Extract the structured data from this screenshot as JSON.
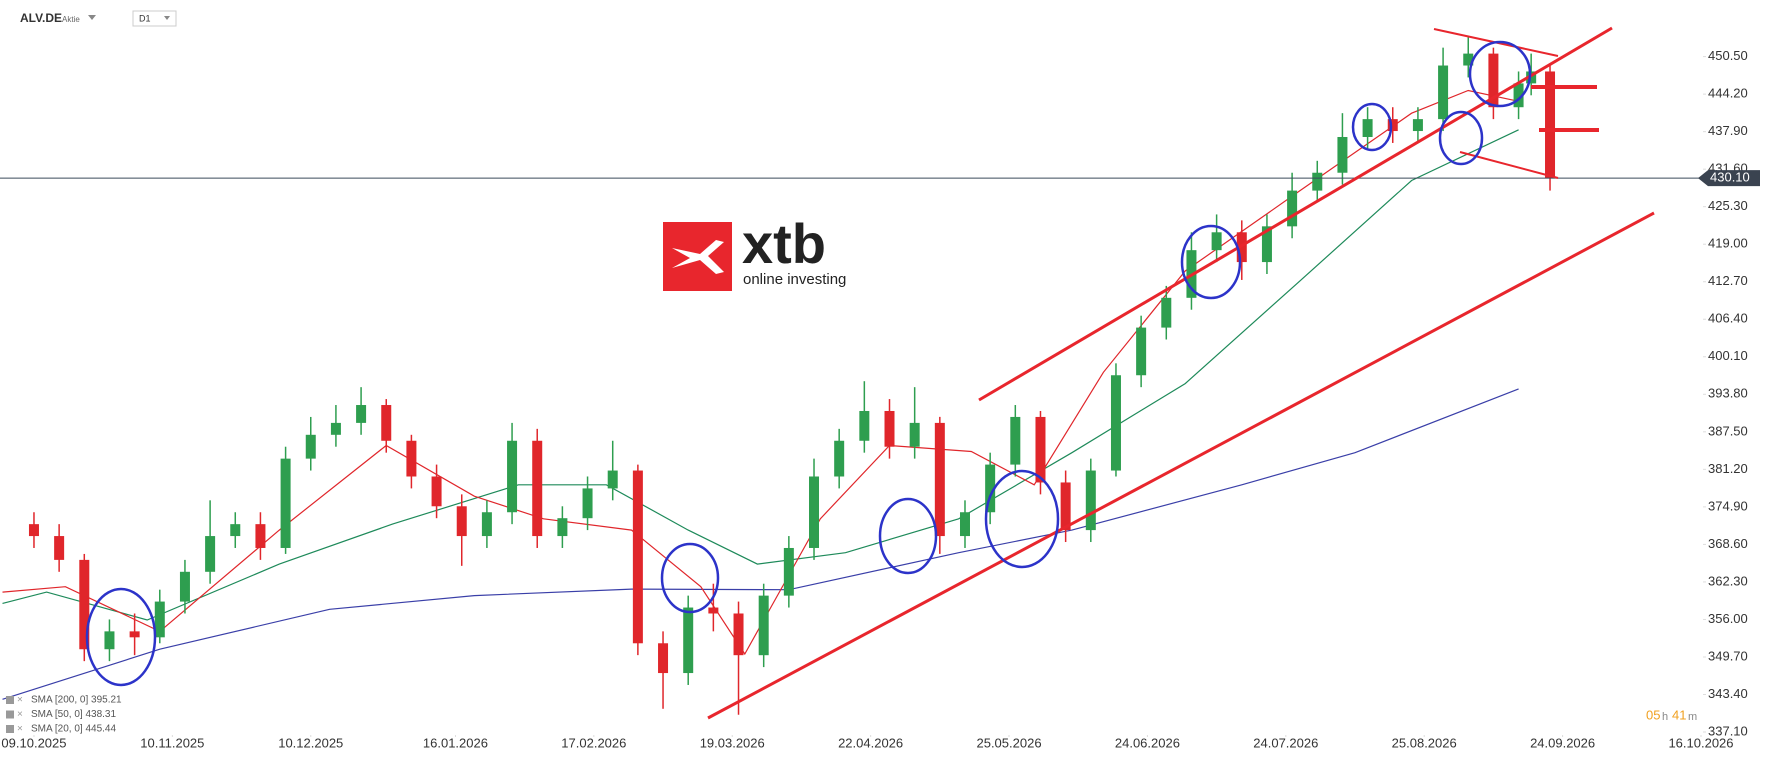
{
  "header": {
    "symbol": "ALV.DE",
    "instrument_type": "Aktie",
    "interval": "D1"
  },
  "logo": {
    "brand": "xtb",
    "tagline": "online investing"
  },
  "timer": {
    "hours": "05",
    "hours_unit": "h",
    "minutes": "41",
    "minutes_unit": "m"
  },
  "chart_data": {
    "type": "candlestick",
    "x": [
      0,
      4,
      8,
      12,
      16,
      20,
      24,
      28,
      32,
      36,
      40,
      44,
      48,
      52,
      56,
      60,
      64,
      68,
      72,
      76,
      80,
      84,
      88,
      92,
      96,
      100,
      104,
      108,
      112,
      116,
      120,
      124,
      128,
      132,
      136,
      140,
      144,
      148,
      152,
      156,
      160,
      164,
      168,
      172,
      176,
      180,
      184,
      188,
      192,
      196,
      200,
      204,
      208,
      212,
      216,
      220,
      224,
      228,
      232,
      236,
      238,
      241
    ],
    "open": [
      372,
      370,
      366,
      351,
      354,
      353,
      359,
      364,
      370,
      372,
      368,
      383,
      387,
      389,
      392,
      386,
      380,
      375,
      370,
      374,
      386,
      370,
      373,
      378,
      381,
      352,
      347,
      358,
      357,
      350,
      360,
      368,
      380,
      386,
      391,
      385,
      389,
      370,
      374,
      382,
      390,
      379,
      371,
      381,
      397,
      405,
      410,
      418,
      421,
      416,
      422,
      428,
      431,
      437,
      440,
      438,
      440,
      449,
      451,
      442,
      446,
      448
    ],
    "high": [
      374,
      372,
      367,
      356,
      357,
      361,
      366,
      376,
      374,
      374,
      385,
      390,
      392,
      395,
      393,
      387,
      382,
      377,
      376,
      389,
      388,
      375,
      380,
      386,
      382,
      354,
      360,
      362,
      359,
      362,
      370,
      383,
      388,
      396,
      393,
      395,
      390,
      376,
      384,
      392,
      391,
      381,
      383,
      399,
      407,
      412,
      421,
      424,
      423,
      424,
      431,
      433,
      441,
      442,
      442,
      442,
      452,
      454,
      452,
      448,
      451,
      449
    ],
    "low": [
      368,
      364,
      349,
      349,
      350,
      352,
      357,
      362,
      368,
      366,
      367,
      381,
      385,
      387,
      384,
      378,
      373,
      365,
      368,
      372,
      368,
      368,
      371,
      376,
      350,
      341,
      345,
      354,
      340,
      348,
      358,
      366,
      378,
      384,
      383,
      383,
      367,
      368,
      372,
      380,
      377,
      369,
      369,
      380,
      395,
      403,
      408,
      416,
      413,
      414,
      420,
      426,
      429,
      435,
      436,
      436,
      438,
      447,
      440,
      440,
      444,
      428
    ],
    "close": [
      370,
      366,
      351,
      354,
      353,
      359,
      364,
      370,
      372,
      368,
      383,
      387,
      389,
      392,
      386,
      380,
      375,
      370,
      374,
      386,
      370,
      373,
      378,
      381,
      352,
      347,
      358,
      357,
      350,
      360,
      368,
      380,
      386,
      391,
      385,
      389,
      370,
      374,
      382,
      390,
      379,
      371,
      381,
      397,
      405,
      410,
      418,
      421,
      416,
      422,
      428,
      431,
      437,
      440,
      438,
      440,
      449,
      451,
      442,
      446,
      448,
      430.1
    ],
    "up_color": "#2e9e4f",
    "down_color": "#e0262b",
    "xlim": [
      -5.4,
      265
    ],
    "xticks": [
      {
        "value": 0,
        "label": "09.10.2025"
      },
      {
        "value": 22,
        "label": "10.11.2025"
      },
      {
        "value": 44,
        "label": "10.12.2025"
      },
      {
        "value": 67,
        "label": "16.01.2026"
      },
      {
        "value": 89,
        "label": "17.02.2026"
      },
      {
        "value": 111,
        "label": "19.03.2026"
      },
      {
        "value": 133,
        "label": "22.04.2026"
      },
      {
        "value": 155,
        "label": "25.05.2026"
      },
      {
        "value": 177,
        "label": "24.06.2026"
      },
      {
        "value": 199,
        "label": "24.07.2026"
      },
      {
        "value": 221,
        "label": "25.08.2026"
      },
      {
        "value": 243,
        "label": "24.09.2026"
      },
      {
        "value": 265,
        "label": "16.10.2026"
      }
    ],
    "ylim": [
      336.6,
      460
    ],
    "yticks": [
      {
        "value": 450.5,
        "label": "450.50"
      },
      {
        "value": 444.2,
        "label": "444.20"
      },
      {
        "value": 437.9,
        "label": "437.90"
      },
      {
        "value": 431.6,
        "label": "431.60"
      },
      {
        "value": 425.3,
        "label": "425.30"
      },
      {
        "value": 419,
        "label": "419.00"
      },
      {
        "value": 412.7,
        "label": "412.70"
      },
      {
        "value": 406.4,
        "label": "406.40"
      },
      {
        "value": 400.1,
        "label": "400.10"
      },
      {
        "value": 393.8,
        "label": "393.80"
      },
      {
        "value": 387.5,
        "label": "387.50"
      },
      {
        "value": 381.2,
        "label": "381.20"
      },
      {
        "value": 374.9,
        "label": "374.90"
      },
      {
        "value": 368.6,
        "label": "368.60"
      },
      {
        "value": 362.3,
        "label": "362.30"
      },
      {
        "value": 356,
        "label": "356.00"
      },
      {
        "value": 349.7,
        "label": "349.70"
      },
      {
        "value": 343.4,
        "label": "343.40"
      },
      {
        "value": 337.1,
        "label": "337.10"
      }
    ],
    "last_price": {
      "value": 430.1,
      "label": "430.10"
    },
    "series": [
      {
        "name": "SMA [200, 0] 395.21",
        "color": "#3a3fa8",
        "x": [
          -5,
          20,
          47,
          70,
          95,
          120,
          147,
          165,
          192,
          210,
          236
        ],
        "values": [
          342.6,
          351,
          357.7,
          360,
          361.1,
          361,
          367.2,
          371,
          378.6,
          384,
          394.7
        ]
      },
      {
        "name": "SMA [50, 0] 438.31",
        "color": "#1e8a5a",
        "x": [
          -5,
          2,
          18,
          39,
          57,
          77,
          91,
          104,
          115,
          129,
          147,
          165,
          183,
          201,
          219,
          236
        ],
        "values": [
          358.7,
          360.6,
          355.9,
          365.3,
          372,
          378.6,
          378.6,
          371,
          365.3,
          367.2,
          372.9,
          384,
          395.6,
          412.6,
          429.7,
          438.2
        ]
      },
      {
        "name": "SMA [20, 0] 445.44",
        "color": "#e0262b",
        "x": [
          -5,
          5,
          20,
          39,
          56,
          70,
          81,
          95,
          106,
          113,
          125,
          136,
          149,
          159,
          170,
          183,
          201,
          219,
          228,
          236
        ],
        "values": [
          360.6,
          361.5,
          354,
          371,
          385.2,
          376.7,
          372.9,
          371,
          361.5,
          350.2,
          372.9,
          385.2,
          384.2,
          378.6,
          397.5,
          414.5,
          427.8,
          441,
          444.8,
          443
        ]
      }
    ]
  }
}
